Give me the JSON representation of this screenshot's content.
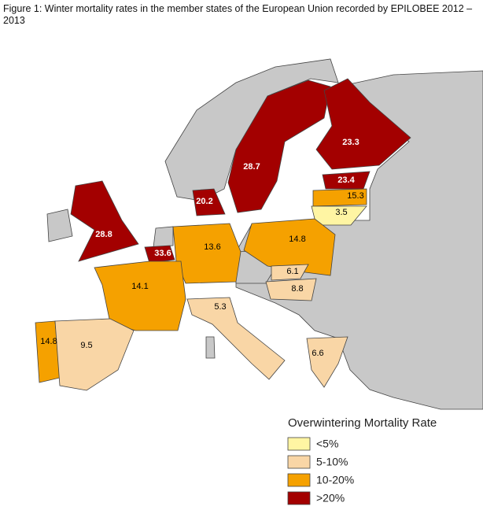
{
  "header": {
    "title": "Figure 1: Winter mortality rates in the member states of the European Union recorded by EPILOBEE 2012 – 2013"
  },
  "regions": [
    {
      "label": 28.7,
      "color": "#a30000"
    },
    {
      "label": 23.3,
      "color": "#a30000"
    },
    {
      "label": 23.4,
      "color": "#a30000"
    },
    {
      "label": 15.3,
      "color": "#f5a100"
    },
    {
      "label": 3.5,
      "color": "#fff5a3"
    },
    {
      "label": 20.2,
      "color": "#a30000"
    },
    {
      "label": 28.8,
      "color": "#a30000"
    },
    {
      "label": 33.6,
      "color": "#a30000"
    },
    {
      "label": 13.6,
      "color": "#f5a100"
    },
    {
      "label": 14.8,
      "color": "#f5a100"
    },
    {
      "label": 14.1,
      "color": "#f5a100"
    },
    {
      "label": 6.1,
      "color": "#f9d6a6"
    },
    {
      "label": 8.8,
      "color": "#f9d6a6"
    },
    {
      "label": 5.3,
      "color": "#f9d6a6"
    },
    {
      "label": 14.8,
      "color": "#f5a100"
    },
    {
      "label": 9.5,
      "color": "#f9d6a6"
    },
    {
      "label": 6.6,
      "color": "#f9d6a6"
    }
  ],
  "legend": {
    "title": "Overwintering Mortality Rate",
    "items": [
      {
        "label": "<5%",
        "color": "#fff5a3"
      },
      {
        "label": "5-10%",
        "color": "#f9d6a6"
      },
      {
        "label": "10-20%",
        "color": "#f5a100"
      },
      {
        "label": ">20%",
        "color": "#a30000"
      }
    ]
  }
}
